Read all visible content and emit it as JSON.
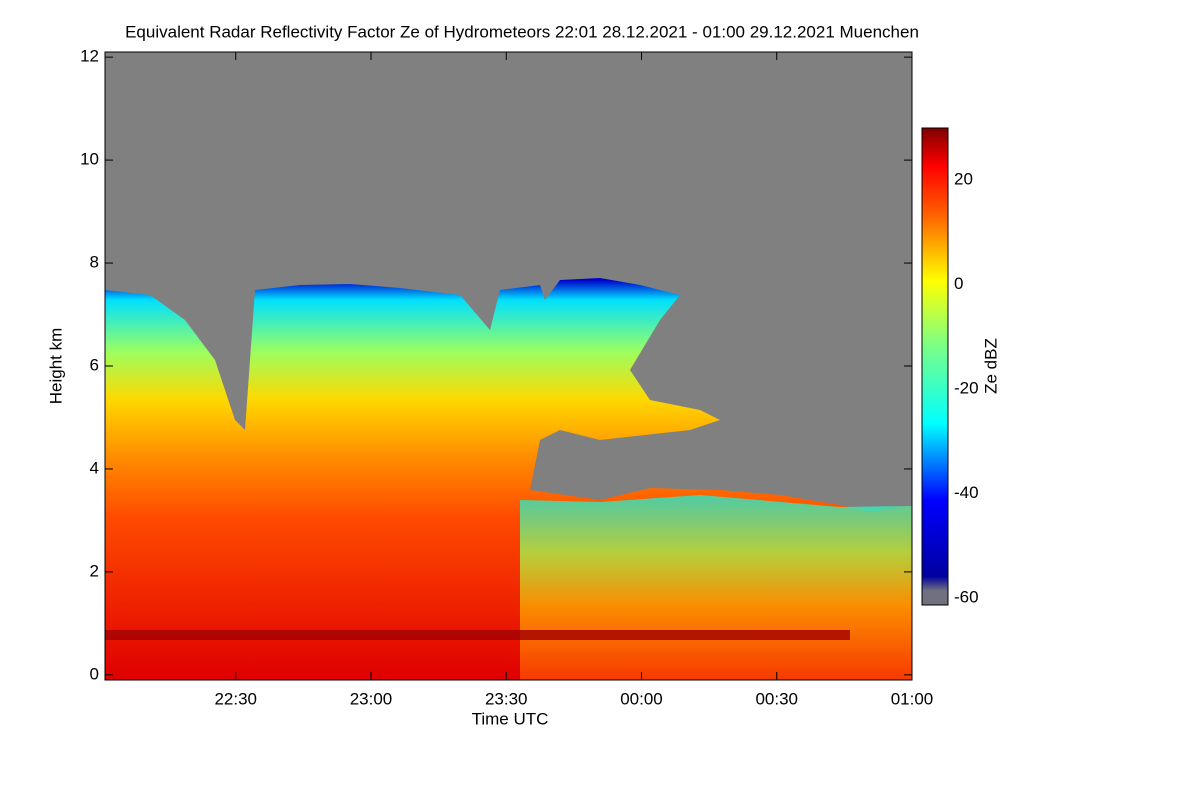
{
  "chart_data": {
    "type": "heatmap",
    "title": "Equivalent Radar Reflectivity Factor Ze of Hydrometeors   22:01 28.12.2021 - 01:00 29.12.2021 Muenchen",
    "x_label": "Time UTC",
    "y_label": "Height km",
    "xlim": [
      1,
      180
    ],
    "xticks": [
      {
        "value": 30,
        "label": "22:30"
      },
      {
        "value": 60,
        "label": "23:00"
      },
      {
        "value": 90,
        "label": "23:30"
      },
      {
        "value": 120,
        "label": "00:00"
      },
      {
        "value": 150,
        "label": "00:30"
      },
      {
        "value": 180,
        "label": "01:00"
      }
    ],
    "ylim": [
      -0.1,
      12.1
    ],
    "yticks": [
      0,
      2,
      4,
      6,
      8,
      10,
      12
    ],
    "colorbar": {
      "label": "Ze dBZ",
      "lim": [
        -61.3,
        30
      ],
      "ticks": [
        20,
        0,
        -20,
        -40,
        -60
      ]
    }
  }
}
